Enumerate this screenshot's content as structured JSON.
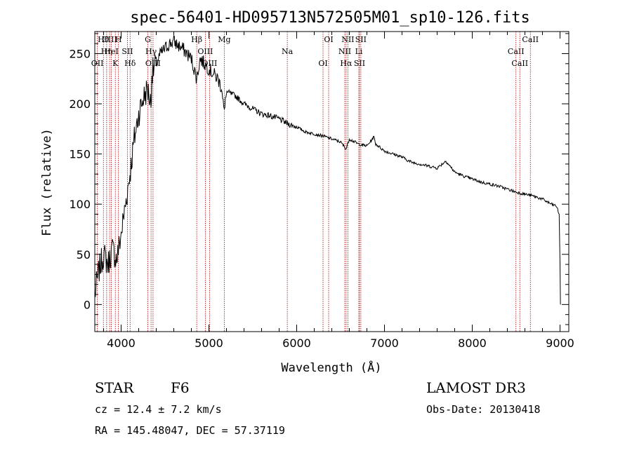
{
  "chart_data": {
    "type": "line",
    "title": "spec-56401-HD095713N572505M01_sp10-126.fits",
    "xlabel": "Wavelength (Å)",
    "ylabel": "Flux (relative)",
    "xlim": [
      3700,
      9100
    ],
    "ylim": [
      -27,
      272
    ],
    "xticks": [
      4000,
      5000,
      6000,
      7000,
      8000,
      9000
    ],
    "yticks": [
      0,
      50,
      100,
      150,
      200,
      250
    ],
    "series": [
      {
        "name": "spectrum",
        "x": [
          3700,
          3750,
          3800,
          3850,
          3900,
          3950,
          4000,
          4050,
          4100,
          4150,
          4200,
          4250,
          4300,
          4340,
          4350,
          4400,
          4450,
          4500,
          4550,
          4600,
          4650,
          4700,
          4750,
          4800,
          4861,
          4900,
          4950,
          5000,
          5050,
          5100,
          5150,
          5175,
          5200,
          5300,
          5400,
          5500,
          5600,
          5700,
          5800,
          5900,
          6000,
          6100,
          6200,
          6300,
          6400,
          6500,
          6563,
          6600,
          6700,
          6800,
          6880,
          6900,
          7000,
          7100,
          7200,
          7300,
          7400,
          7500,
          7600,
          7700,
          7800,
          7900,
          8000,
          8100,
          8200,
          8300,
          8400,
          8500,
          8600,
          8700,
          8800,
          8900,
          8960,
          8990,
          9000,
          9005
        ],
        "y": [
          10,
          35,
          50,
          40,
          55,
          45,
          70,
          100,
          130,
          165,
          190,
          205,
          215,
          200,
          230,
          240,
          250,
          255,
          260,
          262,
          258,
          255,
          250,
          245,
          225,
          245,
          240,
          235,
          230,
          225,
          215,
          190,
          212,
          208,
          200,
          195,
          190,
          188,
          185,
          180,
          177,
          172,
          170,
          168,
          165,
          162,
          155,
          165,
          160,
          158,
          167,
          160,
          153,
          150,
          147,
          142,
          140,
          138,
          136,
          143,
          132,
          128,
          125,
          122,
          120,
          118,
          115,
          112,
          110,
          108,
          105,
          100,
          98,
          90,
          40,
          0
        ]
      }
    ],
    "lines": [
      {
        "x": 3798,
        "label": "Hθ"
      },
      {
        "x": 3835,
        "label": "Hη"
      },
      {
        "x": 3729,
        "label": "OII"
      },
      {
        "x": 3869,
        "label": "CIII"
      },
      {
        "x": 3889,
        "label": "HeI"
      },
      {
        "x": 3934,
        "label": "K"
      },
      {
        "x": 3969,
        "label": "H"
      },
      {
        "x": 4072,
        "label": "SII"
      },
      {
        "x": 4102,
        "label": "Hδ"
      },
      {
        "x": 4304,
        "label": "G"
      },
      {
        "x": 4341,
        "label": "Hγ"
      },
      {
        "x": 4363,
        "label": "OIII"
      },
      {
        "x": 4861,
        "label": "Hβ"
      },
      {
        "x": 4959,
        "label": "OIII"
      },
      {
        "x": 5007,
        "label": "OIII"
      },
      {
        "x": 5175,
        "label": "Mg"
      },
      {
        "x": 5893,
        "label": "Na"
      },
      {
        "x": 6300,
        "label": "OI"
      },
      {
        "x": 6364,
        "label": "OI"
      },
      {
        "x": 6548,
        "label": "NII"
      },
      {
        "x": 6563,
        "label": "Hα"
      },
      {
        "x": 6583,
        "label": "NII"
      },
      {
        "x": 6708,
        "label": "Li"
      },
      {
        "x": 6716,
        "label": "SII"
      },
      {
        "x": 6731,
        "label": "SII"
      },
      {
        "x": 8498,
        "label": "CaII"
      },
      {
        "x": 8542,
        "label": "CaII"
      },
      {
        "x": 8662,
        "label": "CaII"
      }
    ]
  },
  "info": {
    "object_type": "STAR",
    "subclass": "F6",
    "survey": "LAMOST DR3",
    "redshift": "cz = 12.4 ± 7.2 km/s",
    "obs_date": "Obs-Date: 20130418",
    "coords": "RA = 145.48047, DEC =  57.37119"
  },
  "colors": {
    "line_marker": "#b00000",
    "spectrum": "#000000"
  }
}
